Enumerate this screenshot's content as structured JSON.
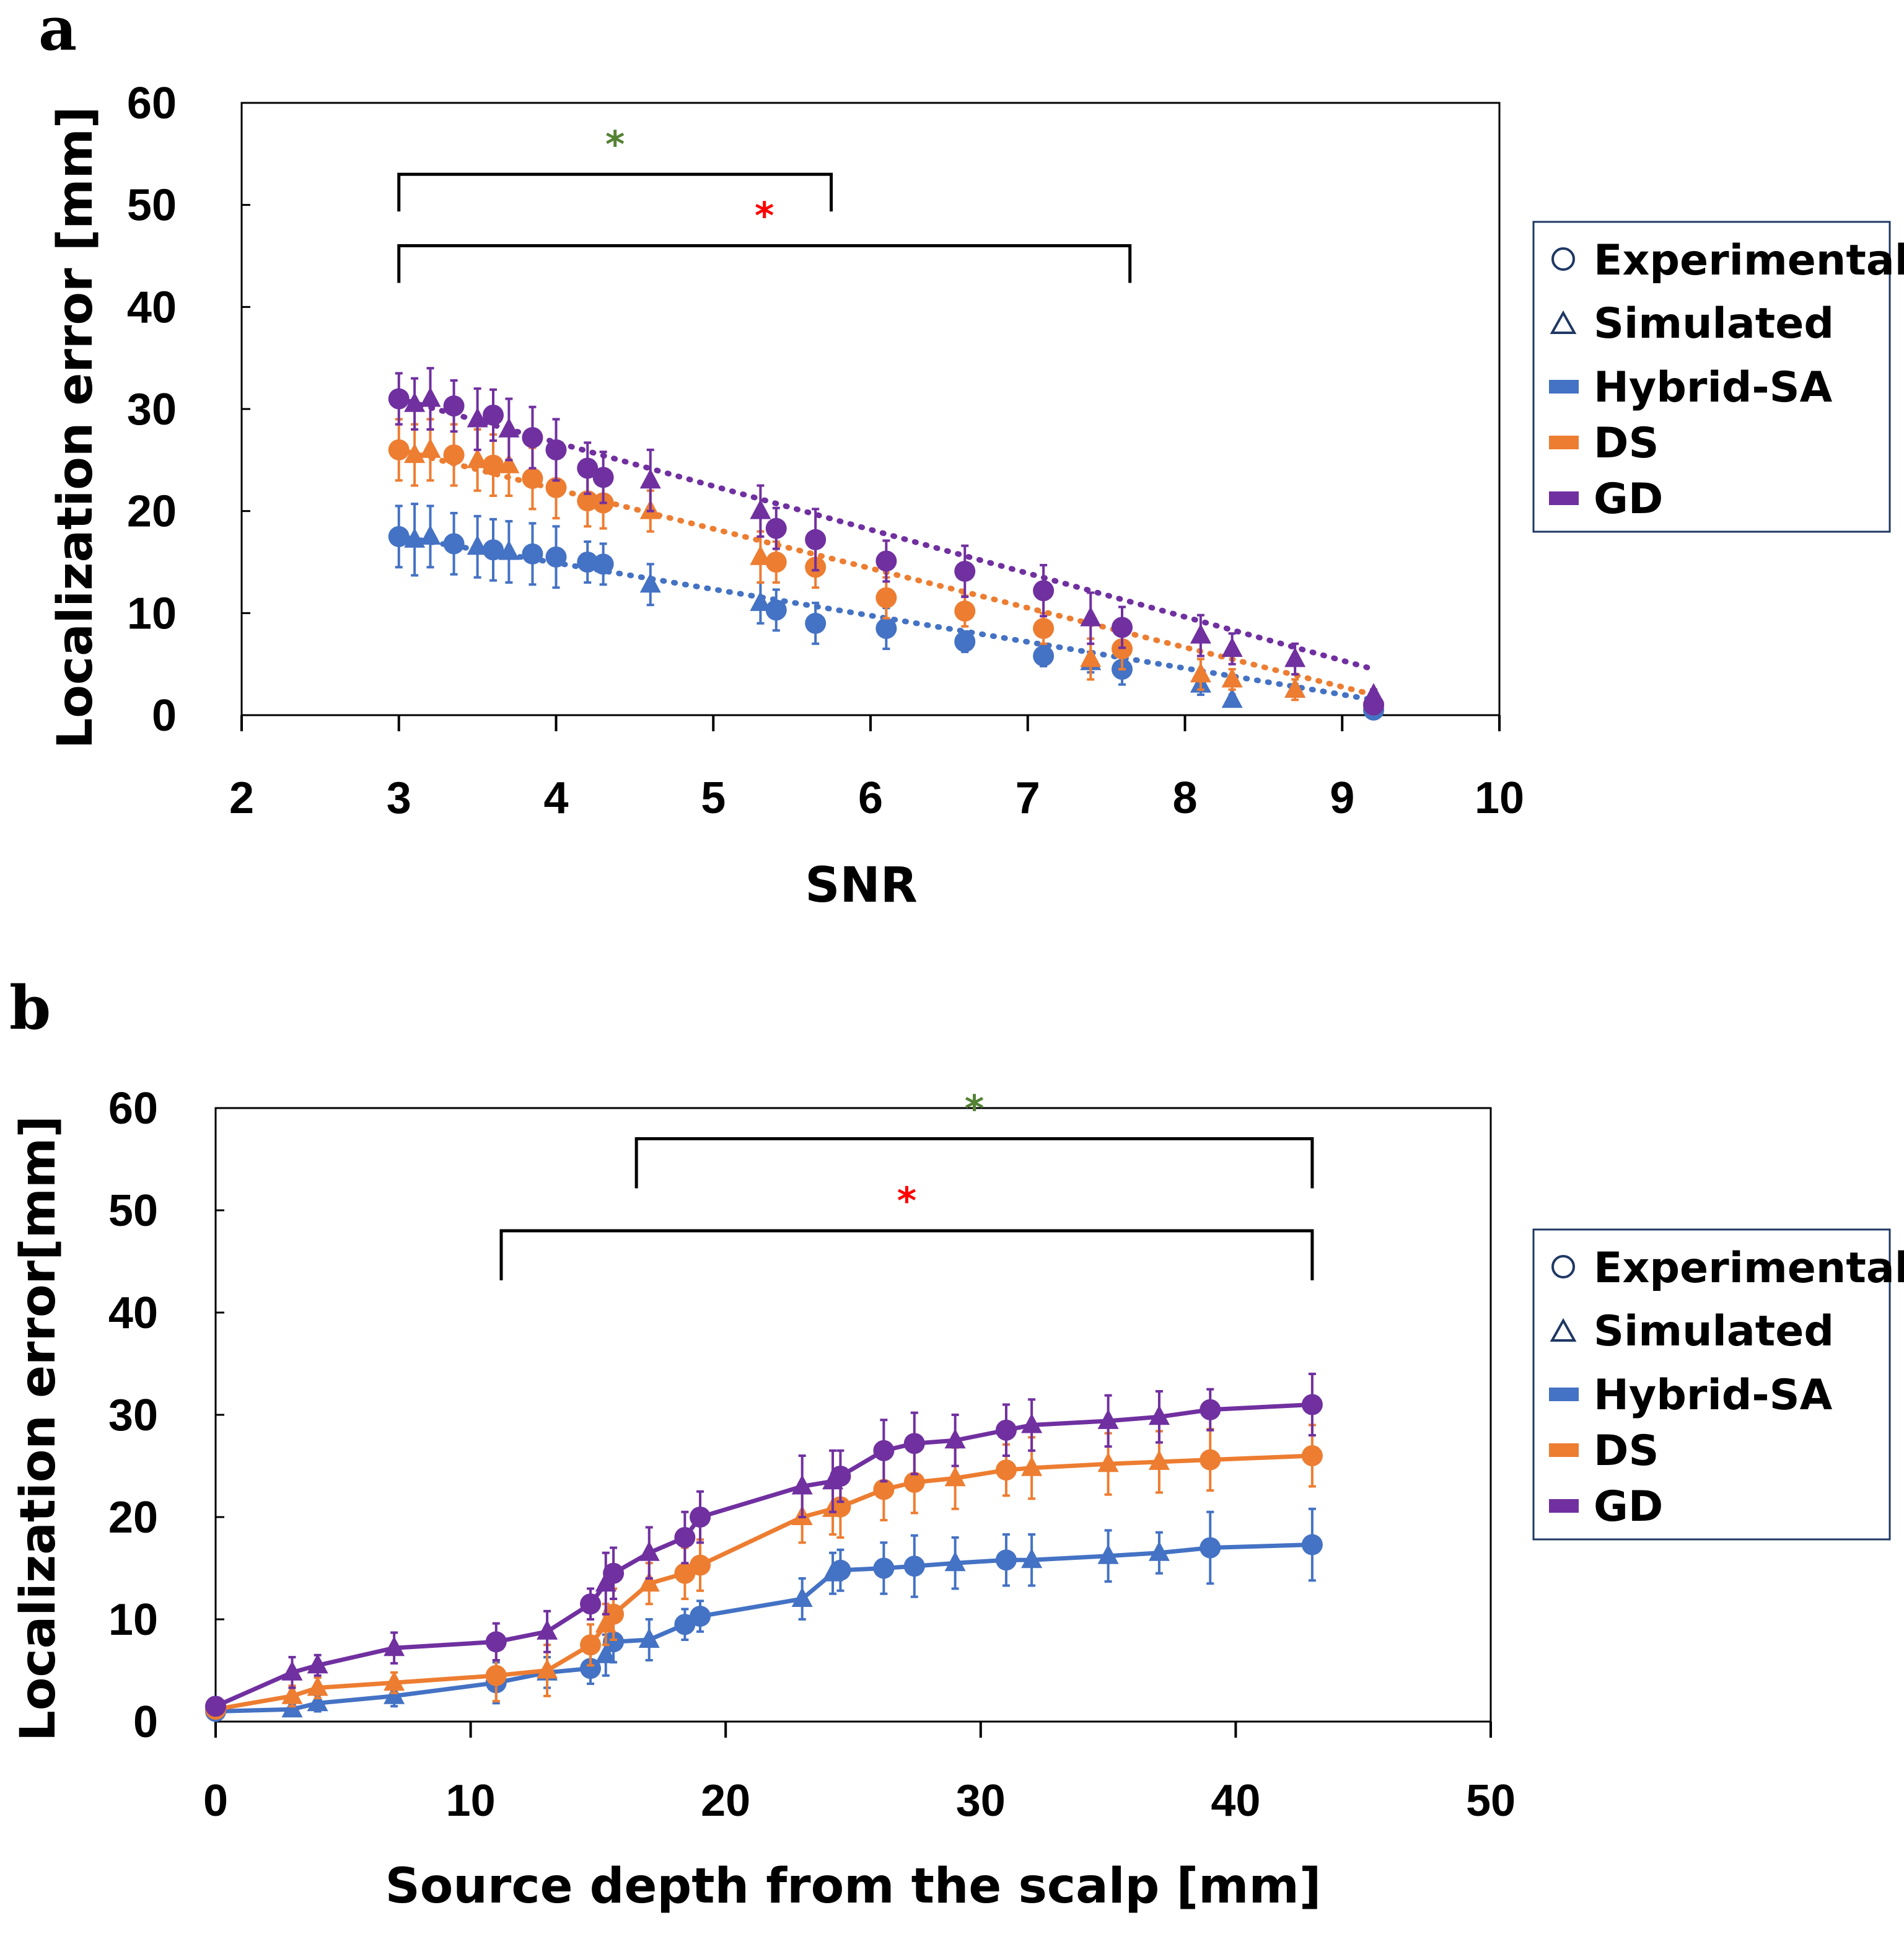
{
  "colors": {
    "hybrid": "#4472C4",
    "ds": "#ED7D31",
    "gd": "#7030A0",
    "sig_green": "#548235",
    "sig_red": "#FF0000"
  },
  "chart_data": [
    {
      "panel": "a",
      "type": "scatter",
      "trend": "dotted",
      "xlabel": "SNR",
      "ylabel": "Localization error [mm]",
      "xlim": [
        2,
        10
      ],
      "ylim": [
        0,
        60
      ],
      "xticks": [
        "2",
        "3",
        "4",
        "5",
        "6",
        "7",
        "8",
        "9",
        "10"
      ],
      "yticks": [
        "0",
        "10",
        "20",
        "30",
        "40",
        "50",
        "60"
      ],
      "legend": {
        "position": "right",
        "markers": [
          {
            "symbol": "circle",
            "label": "Experimental"
          },
          {
            "symbol": "triangle",
            "label": "Simulated"
          }
        ],
        "series": [
          "Hybrid-SA",
          "DS",
          "GD"
        ]
      },
      "significance": [
        {
          "symbol": "*",
          "color": "green",
          "x_from": 3,
          "x_to": 5.75,
          "level": 53
        },
        {
          "symbol": "*",
          "color": "red",
          "x_from": 3,
          "x_to": 7.65,
          "level": 46
        }
      ],
      "series": [
        {
          "name": "Hybrid-SA",
          "color_key": "hybrid",
          "experimental": {
            "x": [
              3.0,
              3.35,
              3.6,
              3.85,
              4.0,
              4.2,
              4.3,
              5.4,
              5.65,
              6.1,
              6.6,
              7.1,
              7.6,
              9.2
            ],
            "y": [
              17.5,
              16.8,
              16.2,
              15.8,
              15.5,
              15.0,
              14.8,
              10.3,
              9.0,
              8.5,
              7.2,
              5.8,
              4.5,
              0.5
            ],
            "err": [
              3.0,
              3.0,
              3.0,
              3.0,
              3.0,
              2.0,
              2.0,
              2.0,
              2.0,
              2.0,
              1.0,
              1.0,
              1.5,
              0.5
            ]
          },
          "simulated": {
            "x": [
              3.1,
              3.2,
              3.5,
              3.7,
              4.6,
              5.3,
              7.4,
              8.1,
              8.3,
              8.7
            ],
            "y": [
              17.2,
              17.5,
              16.5,
              16.0,
              12.8,
              11.0,
              5.2,
              3.0,
              1.5,
              2.5
            ],
            "err": [
              3.5,
              3.0,
              3.0,
              3.0,
              2.0,
              2.0,
              1.0,
              1.0,
              0.5,
              0.5
            ]
          },
          "trend": {
            "x": [
              3.0,
              9.2
            ],
            "y": [
              17.5,
              1.5
            ]
          }
        },
        {
          "name": "DS",
          "color_key": "ds",
          "experimental": {
            "x": [
              3.0,
              3.35,
              3.6,
              3.85,
              4.0,
              4.2,
              4.3,
              5.4,
              5.65,
              6.1,
              6.6,
              7.1,
              7.6,
              9.2
            ],
            "y": [
              26.0,
              25.5,
              24.5,
              23.2,
              22.3,
              21.0,
              20.8,
              15.0,
              14.5,
              11.5,
              10.2,
              8.5,
              6.5,
              1.0
            ],
            "err": [
              3.0,
              3.0,
              3.0,
              3.0,
              3.0,
              2.5,
              2.5,
              2.0,
              2.0,
              2.0,
              1.5,
              1.5,
              2.0,
              0.5
            ]
          },
          "simulated": {
            "x": [
              3.1,
              3.2,
              3.5,
              3.7,
              4.6,
              5.3,
              7.4,
              8.1,
              8.3,
              8.7
            ],
            "y": [
              25.5,
              26.0,
              25.0,
              24.5,
              20.0,
              15.5,
              5.5,
              4.0,
              3.5,
              2.5
            ],
            "err": [
              3.0,
              3.0,
              3.0,
              3.0,
              2.0,
              2.5,
              2.0,
              1.5,
              1.0,
              1.0
            ]
          },
          "trend": {
            "x": [
              3.0,
              9.2
            ],
            "y": [
              26.0,
              2.0
            ]
          }
        },
        {
          "name": "GD",
          "color_key": "gd",
          "experimental": {
            "x": [
              3.0,
              3.35,
              3.6,
              3.85,
              4.0,
              4.2,
              4.3,
              5.4,
              5.65,
              6.1,
              6.6,
              7.1,
              7.6,
              9.2
            ],
            "y": [
              31.0,
              30.3,
              29.4,
              27.2,
              26.0,
              24.2,
              23.3,
              18.3,
              17.2,
              15.1,
              14.1,
              12.2,
              8.6,
              1.0
            ],
            "err": [
              2.5,
              2.5,
              2.5,
              3.0,
              3.0,
              2.5,
              2.5,
              2.0,
              3.0,
              2.0,
              2.5,
              2.5,
              2.0,
              0.5
            ]
          },
          "simulated": {
            "x": [
              3.1,
              3.2,
              3.5,
              3.7,
              4.6,
              5.3,
              7.4,
              8.1,
              8.3,
              8.7,
              9.2
            ],
            "y": [
              30.5,
              31.0,
              29.0,
              28.0,
              23.0,
              20.0,
              9.5,
              7.8,
              6.5,
              5.5,
              2.0
            ],
            "err": [
              2.5,
              3.0,
              3.0,
              3.0,
              3.0,
              2.5,
              2.5,
              2.0,
              1.5,
              1.5,
              0.5
            ]
          },
          "trend": {
            "x": [
              3.0,
              9.2
            ],
            "y": [
              31.0,
              4.5
            ]
          }
        }
      ]
    },
    {
      "panel": "b",
      "type": "line",
      "xlabel": "Source depth from the scalp [mm]",
      "ylabel": "Localization error[mm]",
      "xlim": [
        0,
        50
      ],
      "ylim": [
        0,
        60
      ],
      "xticks": [
        "0",
        "10",
        "20",
        "30",
        "40",
        "50"
      ],
      "yticks": [
        "0",
        "10",
        "20",
        "30",
        "40",
        "50",
        "60"
      ],
      "legend": {
        "position": "right",
        "markers": [
          {
            "symbol": "circle",
            "label": "Experimental"
          },
          {
            "symbol": "triangle",
            "label": "Simulated"
          }
        ],
        "series": [
          "Hybrid-SA",
          "DS",
          "GD"
        ]
      },
      "significance": [
        {
          "symbol": "*",
          "color": "green",
          "x_from": 16.5,
          "x_to": 43,
          "level": 57
        },
        {
          "symbol": "*",
          "color": "red",
          "x_from": 11.2,
          "x_to": 43,
          "level": 48
        }
      ],
      "series": [
        {
          "name": "Hybrid-SA",
          "color_key": "hybrid",
          "line": {
            "x": [
              0,
              3,
              4,
              7,
              11,
              13,
              14.7,
              15.3,
              15.6,
              17,
              18.4,
              19,
              23,
              24.2,
              24.5,
              26.2,
              27.4,
              29,
              31,
              32,
              35,
              37,
              39,
              43
            ],
            "y": [
              1.0,
              1.2,
              1.8,
              2.5,
              3.8,
              4.8,
              5.2,
              6.5,
              7.8,
              8.0,
              9.5,
              10.3,
              12.0,
              14.5,
              14.8,
              15.0,
              15.2,
              15.5,
              15.8,
              15.8,
              16.2,
              16.5,
              17.0,
              17.3
            ]
          },
          "experimental": {
            "x": [
              0,
              11,
              14.7,
              15.6,
              18.4,
              19,
              24.5,
              26.2,
              27.4,
              31,
              39,
              43
            ],
            "y": [
              1.0,
              3.8,
              5.2,
              7.8,
              9.5,
              10.3,
              14.8,
              15.0,
              15.2,
              15.8,
              17.0,
              17.3
            ],
            "err": [
              0.5,
              2.0,
              1.5,
              2.0,
              1.5,
              1.5,
              2.0,
              2.5,
              3.0,
              2.5,
              3.5,
              3.5
            ]
          },
          "simulated": {
            "x": [
              3,
              4,
              7,
              13,
              15.3,
              17,
              23,
              24.2,
              29,
              32,
              35,
              37
            ],
            "y": [
              1.2,
              1.8,
              2.5,
              4.8,
              6.5,
              8.0,
              12.0,
              14.5,
              15.5,
              15.8,
              16.2,
              16.5
            ],
            "err": [
              0.5,
              0.8,
              1.0,
              1.5,
              2.0,
              2.0,
              2.0,
              2.0,
              2.5,
              2.5,
              2.5,
              2.0
            ]
          }
        },
        {
          "name": "DS",
          "color_key": "ds",
          "line": {
            "x": [
              0,
              3,
              4,
              7,
              11,
              13,
              14.7,
              15.3,
              15.6,
              17,
              18.4,
              19,
              23,
              24.2,
              24.5,
              26.2,
              27.4,
              29,
              31,
              32,
              35,
              37,
              39,
              43
            ],
            "y": [
              1.2,
              2.5,
              3.3,
              3.8,
              4.5,
              5.0,
              7.5,
              9.5,
              10.5,
              13.5,
              14.5,
              15.3,
              20.0,
              20.8,
              21.0,
              22.7,
              23.4,
              23.8,
              24.6,
              24.8,
              25.2,
              25.4,
              25.6,
              26.0
            ]
          },
          "experimental": {
            "x": [
              0,
              11,
              14.7,
              15.6,
              18.4,
              19,
              24.5,
              26.2,
              27.4,
              31,
              39,
              43
            ],
            "y": [
              1.2,
              4.5,
              7.5,
              10.5,
              14.5,
              15.3,
              21.0,
              22.7,
              23.4,
              24.6,
              25.6,
              26.0
            ],
            "err": [
              0.5,
              2.5,
              2.0,
              2.5,
              2.5,
              2.5,
              3.0,
              3.0,
              3.0,
              2.5,
              3.0,
              3.0
            ]
          },
          "simulated": {
            "x": [
              3,
              4,
              7,
              13,
              15.3,
              17,
              23,
              24.2,
              29,
              32,
              35,
              37
            ],
            "y": [
              2.5,
              3.3,
              3.8,
              5.0,
              9.5,
              13.5,
              20.0,
              20.8,
              23.8,
              24.8,
              25.2,
              25.4
            ],
            "err": [
              1.0,
              1.0,
              1.0,
              2.5,
              2.0,
              2.0,
              2.5,
              2.5,
              3.0,
              3.0,
              3.0,
              3.0
            ]
          }
        },
        {
          "name": "GD",
          "color_key": "gd",
          "line": {
            "x": [
              0,
              3,
              4,
              7,
              11,
              13,
              14.7,
              15.3,
              15.6,
              17,
              18.4,
              19,
              23,
              24.2,
              24.5,
              26.2,
              27.4,
              29,
              31,
              32,
              35,
              37,
              39,
              43
            ],
            "y": [
              1.5,
              4.8,
              5.5,
              7.2,
              7.8,
              8.8,
              11.5,
              13.5,
              14.5,
              16.5,
              18.0,
              20.0,
              23.0,
              23.5,
              24.0,
              26.5,
              27.2,
              27.5,
              28.5,
              29.0,
              29.4,
              29.8,
              30.5,
              31.0
            ]
          },
          "experimental": {
            "x": [
              0,
              11,
              14.7,
              15.6,
              18.4,
              19,
              24.5,
              26.2,
              27.4,
              31,
              39,
              43
            ],
            "y": [
              1.5,
              7.8,
              11.5,
              14.5,
              18.0,
              20.0,
              24.0,
              26.5,
              27.2,
              28.5,
              30.5,
              31.0
            ],
            "err": [
              0.5,
              1.8,
              1.5,
              2.5,
              2.5,
              2.5,
              2.5,
              3.0,
              3.0,
              2.5,
              2.0,
              3.0
            ]
          },
          "simulated": {
            "x": [
              3,
              4,
              7,
              13,
              15.3,
              17,
              23,
              24.2,
              29,
              32,
              35,
              37
            ],
            "y": [
              4.8,
              5.5,
              7.2,
              8.8,
              13.5,
              16.5,
              23.0,
              23.5,
              27.5,
              29.0,
              29.4,
              29.8
            ],
            "err": [
              1.5,
              1.0,
              1.5,
              2.0,
              3.0,
              2.5,
              3.0,
              3.0,
              2.5,
              2.5,
              2.5,
              2.5
            ]
          }
        }
      ]
    }
  ]
}
